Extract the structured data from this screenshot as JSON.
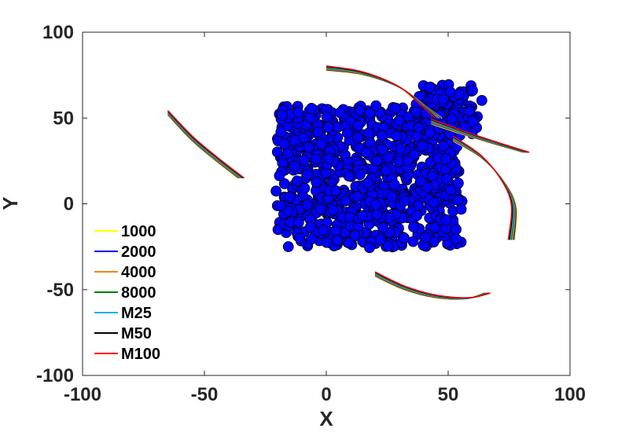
{
  "chart_data": {
    "type": "scatter",
    "title": "",
    "xlabel": "X",
    "ylabel": "Y",
    "xlim": [
      -100,
      100
    ],
    "ylim": [
      -100,
      100
    ],
    "xticks": [
      -100,
      -50,
      0,
      50,
      100
    ],
    "yticks": [
      -100,
      -50,
      0,
      50,
      100
    ],
    "xtick_labels": [
      "-100",
      "-50",
      "0",
      "50",
      "100"
    ],
    "ytick_labels": [
      "-100",
      "-50",
      "0",
      "50",
      "100"
    ],
    "grid": false,
    "legend_position": "bottom-left",
    "particle_color": "#0000ff",
    "particle_cluster": {
      "shape": "rectangular block with raised upper-right lobe",
      "body": {
        "x_range": [
          -20,
          55
        ],
        "y_range": [
          -25,
          57
        ]
      },
      "lobe": {
        "x_range": [
          37,
          63
        ],
        "y_range": [
          40,
          69
        ]
      }
    },
    "trajectory_groups": [
      {
        "name": "upper-left",
        "points": [
          [
            -65,
            53
          ],
          [
            -55,
            38
          ],
          [
            -45,
            26
          ],
          [
            -35,
            15
          ]
        ]
      },
      {
        "name": "upper-center",
        "points": [
          [
            0,
            79
          ],
          [
            15,
            76
          ],
          [
            30,
            68
          ],
          [
            40,
            57
          ],
          [
            46,
            50
          ]
        ]
      },
      {
        "name": "right-upper",
        "points": [
          [
            43,
            48
          ],
          [
            55,
            42
          ],
          [
            68,
            36
          ],
          [
            82,
            30
          ]
        ]
      },
      {
        "name": "right-lower",
        "points": [
          [
            52,
            38
          ],
          [
            64,
            27
          ],
          [
            73,
            12
          ],
          [
            77,
            -2
          ],
          [
            76,
            -21
          ]
        ]
      },
      {
        "name": "bottom",
        "points": [
          [
            20,
            -41
          ],
          [
            32,
            -49
          ],
          [
            45,
            -54
          ],
          [
            58,
            -55
          ],
          [
            66,
            -52
          ]
        ]
      }
    ],
    "series": [
      {
        "name": "1000",
        "color": "#ffff00"
      },
      {
        "name": "2000",
        "color": "#0000ff"
      },
      {
        "name": "4000",
        "color": "#ff8000"
      },
      {
        "name": "8000",
        "color": "#008000"
      },
      {
        "name": "M25",
        "color": "#00b0f0"
      },
      {
        "name": "M50",
        "color": "#000000"
      },
      {
        "name": "M100",
        "color": "#ff0000"
      }
    ]
  }
}
